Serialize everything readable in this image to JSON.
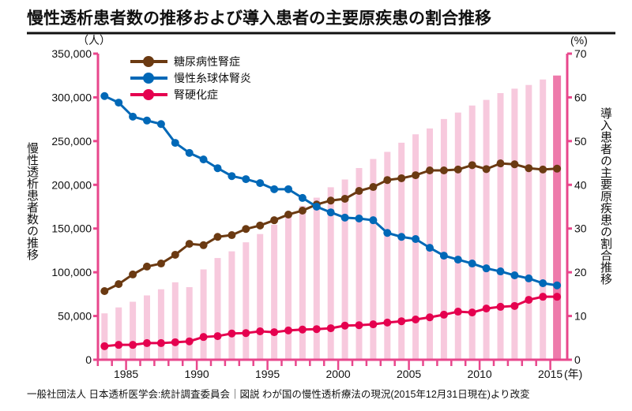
{
  "chart_data": {
    "type": "bar+line",
    "title": "慢性透析患者数の推移および導入患者の主要原疾患の割合推移",
    "ylabel_left": "慢性透析患者数の推移",
    "ylabel_right": "導入患者の主要原疾患の割合推移",
    "unit_left": "（人）",
    "unit_right": "(%)",
    "unit_x": "(年)",
    "ylim_left": [
      0,
      350000
    ],
    "ylim_right": [
      0,
      70
    ],
    "yticks_left": [
      "0",
      "50,000",
      "100,000",
      "150,000",
      "200,000",
      "250,000",
      "300,000",
      "350,000"
    ],
    "yticks_right": [
      "0",
      "10",
      "20",
      "30",
      "40",
      "50",
      "60",
      "70"
    ],
    "xtick_labels": [
      "1985",
      "1990",
      "1995",
      "2000",
      "2005",
      "2010",
      "2015"
    ],
    "x": [
      1983,
      1984,
      1985,
      1986,
      1987,
      1988,
      1989,
      1990,
      1991,
      1992,
      1993,
      1994,
      1995,
      1996,
      1997,
      1998,
      1999,
      2000,
      2001,
      2002,
      2003,
      2004,
      2005,
      2006,
      2007,
      2008,
      2009,
      2010,
      2011,
      2012,
      2013,
      2014,
      2015
    ],
    "bars": {
      "axis": "left",
      "color": "#f7c9dd",
      "highlight_color": "#ee7aab",
      "highlight_year": 2015,
      "values": [
        53017,
        59811,
        66310,
        73537,
        80553,
        88534,
        83000,
        103296,
        116303,
        123926,
        134298,
        143709,
        154413,
        167192,
        175988,
        185322,
        197213,
        206134,
        219183,
        229538,
        237710,
        248166,
        257765,
        264473,
        275242,
        282622,
        290675,
        297126,
        304856,
        309946,
        314180,
        320448,
        324986
      ]
    },
    "series": [
      {
        "name": "糖尿病性腎症",
        "axis": "right",
        "color": "#6b3a12",
        "values": [
          15.7,
          17.3,
          19.5,
          21.3,
          22.0,
          24.0,
          26.5,
          26.2,
          28.1,
          28.5,
          29.9,
          30.7,
          31.9,
          33.2,
          34.1,
          35.5,
          36.4,
          36.8,
          38.6,
          39.5,
          41.1,
          41.5,
          42.2,
          43.3,
          43.3,
          43.5,
          44.5,
          43.6,
          44.9,
          44.7,
          43.8,
          43.5,
          43.7
        ]
      },
      {
        "name": "慢性糸球体腎炎",
        "axis": "right",
        "color": "#0068b7",
        "values": [
          60.3,
          58.8,
          55.6,
          54.7,
          53.9,
          49.6,
          47.3,
          45.8,
          43.8,
          42.0,
          41.3,
          40.4,
          39.0,
          39.0,
          37.0,
          35.0,
          33.7,
          32.5,
          32.3,
          31.9,
          29.0,
          28.1,
          27.6,
          25.6,
          23.8,
          22.9,
          22.0,
          20.9,
          20.2,
          19.3,
          18.6,
          17.5,
          17.0
        ]
      },
      {
        "name": "腎硬化症",
        "axis": "right",
        "color": "#e5004f",
        "values": [
          3.1,
          3.4,
          3.4,
          3.8,
          3.8,
          4.0,
          4.2,
          5.2,
          5.4,
          6.0,
          6.1,
          6.5,
          6.3,
          6.7,
          6.9,
          7.0,
          7.2,
          7.8,
          7.9,
          8.1,
          8.5,
          8.8,
          9.2,
          9.7,
          10.3,
          11.0,
          10.8,
          11.7,
          12.1,
          12.3,
          13.7,
          14.4,
          14.4
        ]
      }
    ],
    "axis_color": "#e8478c",
    "legend_position": "top-left",
    "grid": false
  },
  "source": "一般社団法人 日本透析医学会:統計調査委員会｜図説 わが国の慢性透析療法の現況(2015年12月31日現在)より改変"
}
